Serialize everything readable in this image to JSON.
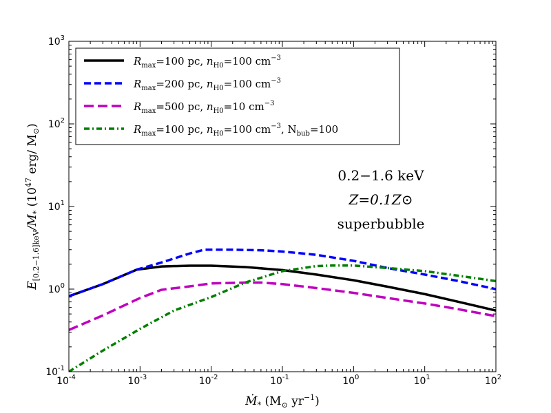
{
  "chart_data": {
    "type": "line",
    "xscale": "log",
    "yscale": "log",
    "xlim": [
      0.0001,
      100
    ],
    "ylim": [
      0.1,
      1000
    ],
    "xlabel": "Ṁ* (M⊙ yr⁻¹)",
    "ylabel": "E[0.2−1.6]keV / M* (10⁴⁷ erg/ M⊙)",
    "x_ticks": [
      {
        "base": "10",
        "exp": "-4",
        "value": 0.0001
      },
      {
        "base": "10",
        "exp": "-3",
        "value": 0.001
      },
      {
        "base": "10",
        "exp": "-2",
        "value": 0.01
      },
      {
        "base": "10",
        "exp": "-1",
        "value": 0.1
      },
      {
        "base": "10",
        "exp": "0",
        "value": 1
      },
      {
        "base": "10",
        "exp": "1",
        "value": 10
      },
      {
        "base": "10",
        "exp": "2",
        "value": 100
      }
    ],
    "y_ticks": [
      {
        "base": "10",
        "exp": "-1",
        "value": 0.1
      },
      {
        "base": "10",
        "exp": "0",
        "value": 1
      },
      {
        "base": "10",
        "exp": "1",
        "value": 10
      },
      {
        "base": "10",
        "exp": "2",
        "value": 100
      },
      {
        "base": "10",
        "exp": "3",
        "value": 1000
      }
    ],
    "annotation": [
      "0.2−1.6 keV",
      "Z=0.1Z⊙",
      "superbubble"
    ],
    "legend_position": "top-left",
    "series": [
      {
        "name": "Rmax=100 pc, nH0=100 cm⁻³",
        "color": "#000000",
        "style": "solid",
        "x": [
          0.0001,
          0.0003,
          0.0009,
          0.002,
          0.005,
          0.01,
          0.03,
          0.1,
          0.3,
          1,
          3,
          10,
          30,
          100
        ],
        "y": [
          0.82,
          1.15,
          1.72,
          1.88,
          1.92,
          1.92,
          1.85,
          1.7,
          1.5,
          1.28,
          1.07,
          0.87,
          0.7,
          0.55
        ]
      },
      {
        "name": "Rmax=200 pc, nH0=100 cm⁻³",
        "color": "#0000ff",
        "style": "dashed",
        "x": [
          0.0001,
          0.0003,
          0.0009,
          0.002,
          0.005,
          0.008,
          0.02,
          0.05,
          0.1,
          0.3,
          1,
          3,
          10,
          30,
          100
        ],
        "y": [
          0.82,
          1.15,
          1.72,
          2.1,
          2.7,
          3.0,
          3.0,
          2.95,
          2.85,
          2.6,
          2.2,
          1.8,
          1.5,
          1.25,
          1.0
        ]
      },
      {
        "name": "Rmax=500 pc, nH0=10 cm⁻³",
        "color": "#bf00bf",
        "style": "dashed",
        "x": [
          0.0001,
          0.0003,
          0.001,
          0.002,
          0.005,
          0.01,
          0.03,
          0.05,
          0.1,
          0.3,
          1,
          3,
          10,
          30,
          100
        ],
        "y": [
          0.32,
          0.48,
          0.78,
          0.98,
          1.08,
          1.17,
          1.2,
          1.2,
          1.15,
          1.03,
          0.9,
          0.78,
          0.67,
          0.57,
          0.47
        ]
      },
      {
        "name": "Rmax=100 pc, nH0=100 cm⁻³, Nbub=100",
        "color": "#007f00",
        "style": "dashdot",
        "x": [
          0.0001,
          0.0003,
          0.001,
          0.003,
          0.01,
          0.03,
          0.1,
          0.3,
          0.5,
          1,
          3,
          10,
          30,
          100
        ],
        "y": [
          0.1,
          0.18,
          0.33,
          0.55,
          0.8,
          1.2,
          1.65,
          1.9,
          1.93,
          1.93,
          1.8,
          1.65,
          1.45,
          1.25
        ]
      }
    ]
  },
  "legend": {
    "entries": [
      {
        "r_val": "=100 pc, ",
        "n_val": "=100 cm",
        "n_exp": "−3",
        "extra": ""
      },
      {
        "r_val": "=200 pc, ",
        "n_val": "=100 cm",
        "n_exp": "−3",
        "extra": ""
      },
      {
        "r_val": "=500 pc, ",
        "n_val": "=10 cm",
        "n_exp": "−3",
        "extra": ""
      },
      {
        "r_val": "=100 pc, ",
        "n_val": "=100 cm",
        "n_exp": "−3",
        "extra": ", N",
        "extra_sub": "bub",
        "extra_val": "=100"
      }
    ],
    "r_symbol": "R",
    "r_sub": "max",
    "n_symbol": "n",
    "n_sub": "H0"
  },
  "axis_text": {
    "x_main": "Ṁ",
    "x_star": "*",
    "x_paren": " (M",
    "x_sun": "⊙",
    "x_unit": " yr",
    "x_unit_exp": "−1",
    "x_close": ")",
    "y_main": "E",
    "y_sub": "[0.2−1.6]keV",
    "y_slash": "/M",
    "y_star": "*",
    "y_unit": " (10",
    "y_unit_exp": "47",
    "y_unit_rest": " erg/ M",
    "y_sun": "⊙",
    "y_close": ")"
  }
}
